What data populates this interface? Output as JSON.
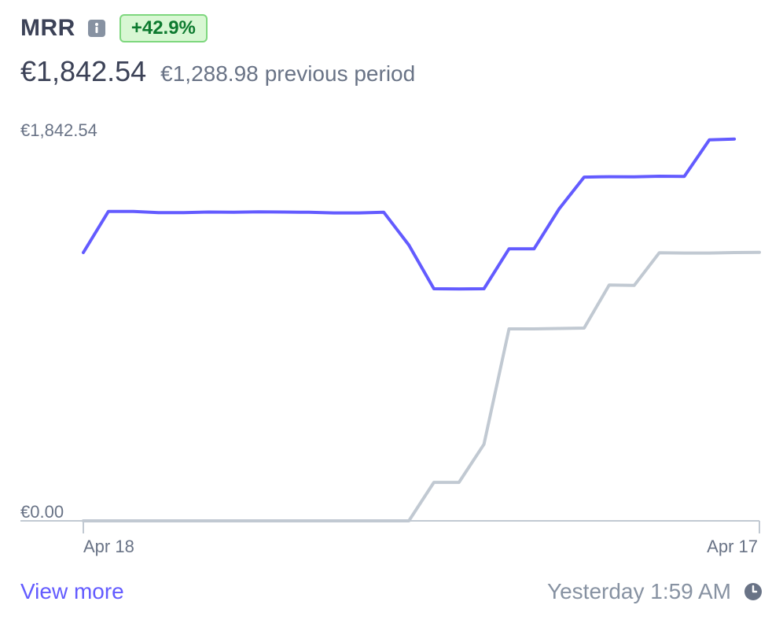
{
  "header": {
    "title": "MRR",
    "change_badge": "+42.9%",
    "current_value": "€1,842.54",
    "previous_value": "€1,288.98",
    "previous_label": "previous period"
  },
  "footer": {
    "view_more": "View more",
    "updated": "Yesterday 1:59 AM"
  },
  "colors": {
    "current_series": "#635bff",
    "previous_series": "#c1c9d2",
    "badge_bg": "#d8f7d3",
    "badge_text": "#0d7a2f",
    "link": "#635bff"
  },
  "icons": {
    "info": "info-icon",
    "clock": "clock-icon"
  },
  "chart_data": {
    "type": "line",
    "y_tick_labels": [
      "€1,842.54",
      "€0.00"
    ],
    "x_tick_labels": [
      "Apr 18",
      "Apr 17"
    ],
    "ylim": [
      0,
      1842.54
    ],
    "grid": false,
    "series": [
      {
        "name": "current",
        "values": [
          1290,
          1488,
          1488,
          1482,
          1482,
          1485,
          1484,
          1486,
          1485,
          1484,
          1481,
          1481,
          1484,
          1326,
          1116,
          1115,
          1116,
          1308,
          1308,
          1500,
          1653,
          1655,
          1654,
          1657,
          1656,
          1832,
          1836
        ]
      },
      {
        "name": "previous",
        "values": [
          0,
          0,
          0,
          0,
          0,
          0,
          0,
          0,
          0,
          0,
          0,
          0,
          0,
          0,
          185,
          185,
          368,
          923,
          923,
          925,
          927,
          1134,
          1132,
          1289,
          1288,
          1288,
          1290,
          1291
        ]
      }
    ]
  }
}
